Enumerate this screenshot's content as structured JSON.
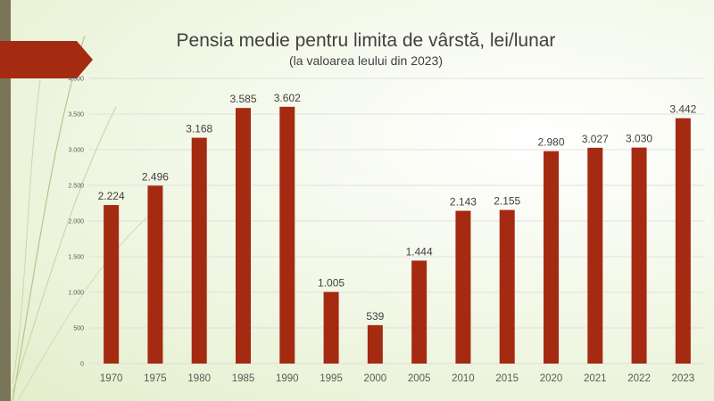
{
  "chart_data": {
    "type": "bar",
    "title": "Pensia medie pentru limita de vârstă, lei/lunar",
    "subtitle": "(la valoarea leului din 2023)",
    "categories": [
      "1970",
      "1975",
      "1980",
      "1985",
      "1990",
      "1995",
      "2000",
      "2005",
      "2010",
      "2015",
      "2020",
      "2021",
      "2022",
      "2023"
    ],
    "values": [
      2224,
      2496,
      3168,
      3585,
      3602,
      1005,
      539,
      1444,
      2143,
      2155,
      2980,
      3027,
      3030,
      3442
    ],
    "data_labels": [
      "2.224",
      "2.496",
      "3.168",
      "3.585",
      "3.602",
      "1.005",
      "539",
      "1.444",
      "2.143",
      "2.155",
      "2.980",
      "3.027",
      "3.030",
      "3.442"
    ],
    "y_ticks": [
      0,
      500,
      1000,
      1500,
      2000,
      2500,
      3000,
      3500,
      4000
    ],
    "y_tick_labels": [
      "0",
      "500",
      "1.000",
      "1.500",
      "2.000",
      "2.500",
      "3.000",
      "3.500",
      "4.000"
    ],
    "ylim": [
      0,
      4000
    ],
    "grid": true,
    "bar_color": "#a52a12",
    "grid_color": "#d9d9d9",
    "text_color": "#404040",
    "accent_color": "#a52a12",
    "side_bar_color": "#7a7558"
  }
}
